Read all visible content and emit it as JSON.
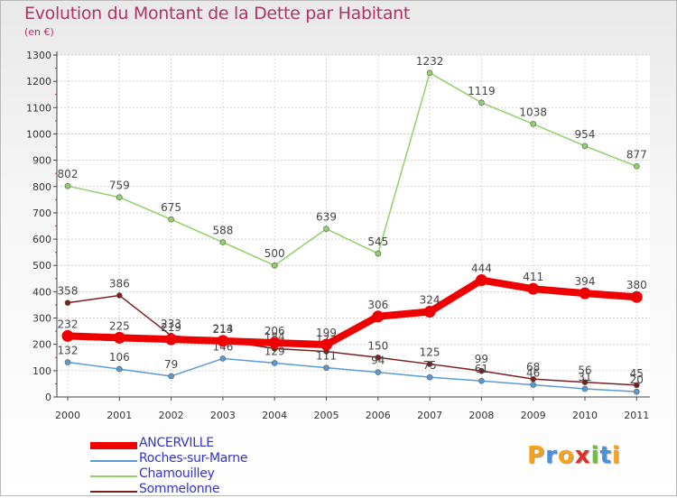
{
  "chart_data": {
    "type": "line",
    "title": "Evolution du Montant de la Dette par Habitant",
    "subtitle": "(en €)",
    "x": [
      "2000",
      "2001",
      "2002",
      "2003",
      "2004",
      "2005",
      "2006",
      "2007",
      "2008",
      "2009",
      "2010",
      "2011"
    ],
    "ylim": [
      0,
      1300
    ],
    "yticks": [
      0,
      100,
      200,
      300,
      400,
      500,
      600,
      700,
      800,
      900,
      1000,
      1100,
      1200,
      1300
    ],
    "grid": true,
    "legend_position": "bottom-left",
    "series": [
      {
        "name": "ANCERVILLE",
        "color": "#ee0000",
        "values": [
          232,
          225,
          219,
          213,
          206,
          199,
          306,
          324,
          444,
          411,
          394,
          380
        ]
      },
      {
        "name": "Roches-sur-Marne",
        "color": "#5b9bd5",
        "values": [
          132,
          106,
          79,
          146,
          129,
          111,
          94,
          75,
          61,
          46,
          31,
          20
        ]
      },
      {
        "name": "Chamouilley",
        "color": "#8fd16a",
        "values": [
          802,
          759,
          675,
          588,
          500,
          639,
          545,
          1232,
          1119,
          1038,
          954,
          877
        ]
      },
      {
        "name": "Sommelonne",
        "color": "#7a1f1f",
        "values": [
          358,
          386,
          233,
          214,
          184,
          173,
          150,
          125,
          99,
          68,
          56,
          45
        ]
      }
    ]
  },
  "logo": {
    "letters": [
      "P",
      "r",
      "o",
      "x",
      "i",
      "t",
      "i"
    ],
    "colors": [
      "#f7a21b",
      "#4a90d9",
      "#f7a21b",
      "#d9342b",
      "#6cbf3c",
      "#4a90d9",
      "#f7a21b"
    ]
  }
}
